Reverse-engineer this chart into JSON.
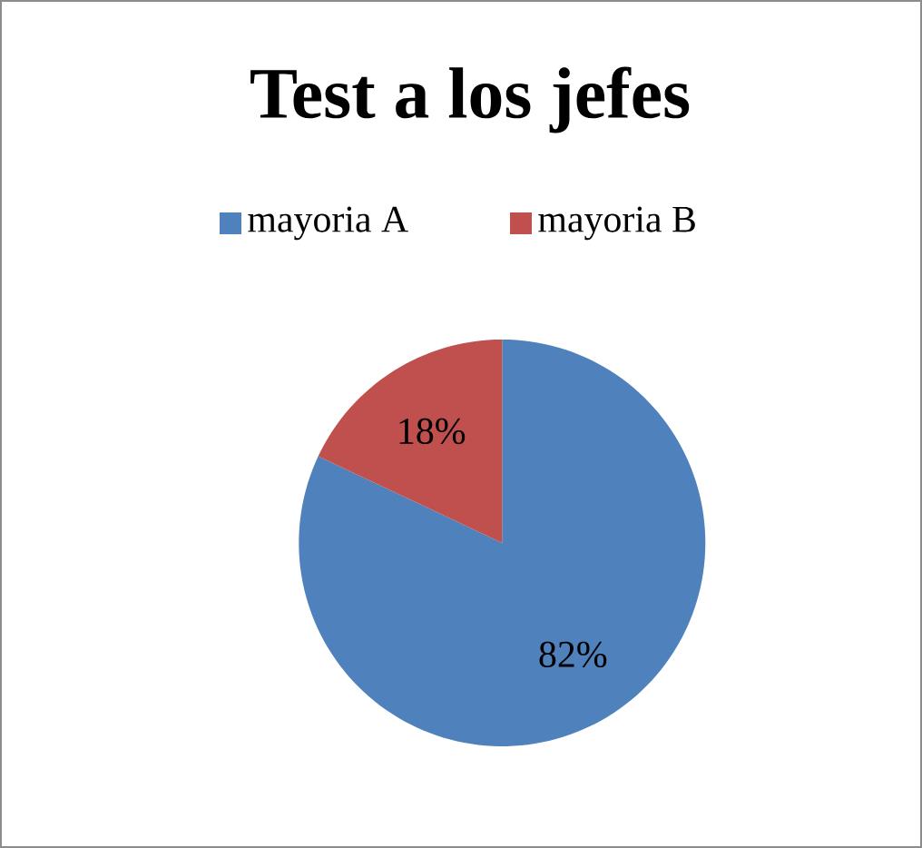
{
  "chart_data": {
    "type": "pie",
    "title": "Test a los jefes",
    "categories": [
      "mayoria A",
      "mayoria B"
    ],
    "values": [
      82,
      18
    ],
    "colors": [
      "#4f81bd",
      "#c0504d"
    ],
    "value_labels": [
      "82%",
      "18%"
    ],
    "legend": "top"
  }
}
